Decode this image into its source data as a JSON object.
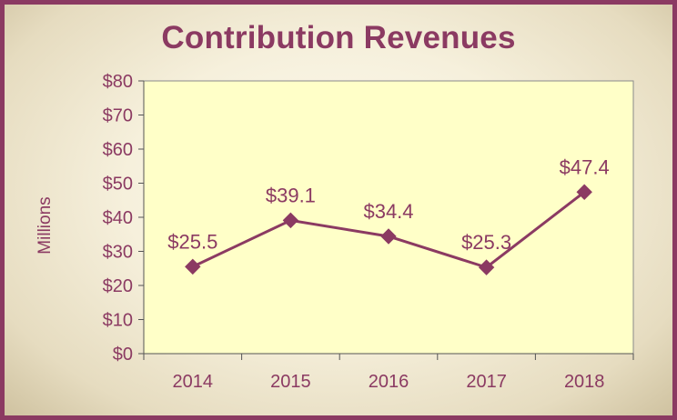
{
  "title": "Contribution Revenues",
  "colors": {
    "border": "#8b3a62",
    "line": "#8b3a62",
    "plot_bg": "#ffffc8",
    "text": "#8b3a62"
  },
  "chart_data": {
    "type": "line",
    "title": "Contribution Revenues",
    "xlabel": "",
    "ylabel": "Millions",
    "categories": [
      "2014",
      "2015",
      "2016",
      "2017",
      "2018"
    ],
    "series": [
      {
        "values": [
          25.5,
          39.1,
          34.4,
          25.3,
          47.4
        ],
        "data_labels": [
          "$25.5",
          "$39.1",
          "$34.4",
          "$25.3",
          "$47.4"
        ]
      }
    ],
    "ylim": [
      0,
      80
    ],
    "yticks": [
      0,
      10,
      20,
      30,
      40,
      50,
      60,
      70,
      80
    ],
    "ytick_labels": [
      "$0",
      "$10",
      "$20",
      "$30",
      "$40",
      "$50",
      "$60",
      "$70",
      "$80"
    ],
    "grid": false,
    "legend": "none",
    "marker": "diamond"
  }
}
